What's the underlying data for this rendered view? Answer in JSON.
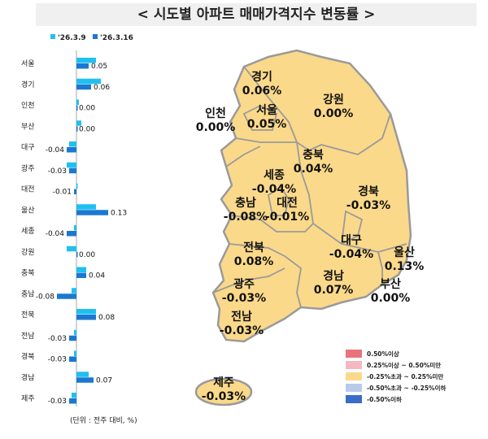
{
  "title": "< 시도별 아파트 매매가격지수 변동률 >",
  "chart_data": {
    "type": "bar",
    "orientation": "horizontal",
    "categories": [
      "서울",
      "경기",
      "인천",
      "부산",
      "대구",
      "광주",
      "대전",
      "울산",
      "세종",
      "강원",
      "충북",
      "충남",
      "전북",
      "전남",
      "경북",
      "경남",
      "제주"
    ],
    "series": [
      {
        "name": "'26.3.9",
        "color": "#1fc0f0",
        "values": [
          0.08,
          0.1,
          0.01,
          0.02,
          -0.03,
          -0.04,
          0.0,
          0.08,
          -0.01,
          -0.04,
          0.04,
          -0.02,
          0.08,
          -0.01,
          -0.01,
          0.05,
          -0.02
        ]
      },
      {
        "name": "'26.3.16",
        "color": "#1a78d0",
        "values": [
          0.05,
          0.06,
          0.0,
          0.0,
          -0.04,
          -0.03,
          -0.01,
          0.13,
          -0.04,
          0.0,
          0.04,
          -0.08,
          0.08,
          -0.03,
          -0.03,
          0.07,
          -0.03
        ]
      }
    ],
    "data_labels": [
      "0.05",
      "0.06",
      "0.00",
      "0.00",
      "-0.04",
      "-0.03",
      "-0.01",
      "0.13",
      "-0.04",
      "0.00",
      "0.04",
      "-0.08",
      "0.08",
      "-0.03",
      "-0.03",
      "0.07",
      "-0.03"
    ],
    "unit_note": "(단위 : 전주 대비, %)",
    "legend": "top"
  },
  "map": {
    "fill": "#fbd98a",
    "regions": [
      {
        "name": "경기",
        "value": "0.06%"
      },
      {
        "name": "강원",
        "value": "0.00%"
      },
      {
        "name": "인천",
        "value": "0.00%"
      },
      {
        "name": "서울",
        "value": "0.05%"
      },
      {
        "name": "충북",
        "value": "0.04%"
      },
      {
        "name": "세종",
        "value": "-0.04%"
      },
      {
        "name": "경북",
        "value": "-0.03%"
      },
      {
        "name": "충남",
        "value": "-0.08%"
      },
      {
        "name": "대전",
        "value": "-0.01%"
      },
      {
        "name": "대구",
        "value": "-0.04%"
      },
      {
        "name": "울산",
        "value": "0.13%"
      },
      {
        "name": "전북",
        "value": "0.08%"
      },
      {
        "name": "경남",
        "value": "0.07%"
      },
      {
        "name": "부산",
        "value": "0.00%"
      },
      {
        "name": "광주",
        "value": "-0.03%"
      },
      {
        "name": "전남",
        "value": "-0.03%"
      },
      {
        "name": "제주",
        "value": "-0.03%"
      }
    ],
    "legend": [
      {
        "label": "0.50%이상",
        "color": "#e8737a"
      },
      {
        "label": "0.25%이상 ~ 0.50%미만",
        "color": "#f5b8c0"
      },
      {
        "label": "-0.25%초과 ~ 0.25%미만",
        "color": "#fbd98a"
      },
      {
        "label": "-0.50%초과 ~ -0.25%이하",
        "color": "#b9c9ea"
      },
      {
        "label": "-0.50%이하",
        "color": "#3a6cc8"
      }
    ]
  }
}
